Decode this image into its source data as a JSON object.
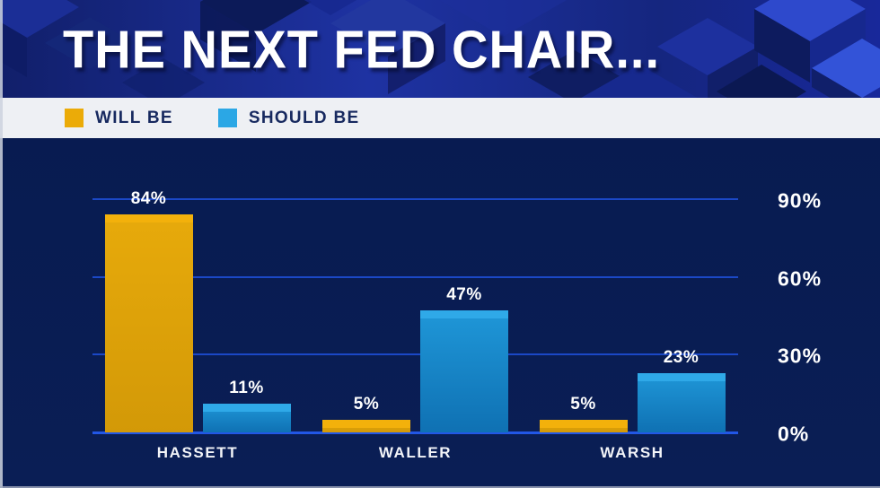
{
  "header": {
    "title": "THE NEXT FED CHAIR..."
  },
  "legend": {
    "items": [
      {
        "label": "WILL BE",
        "color": "#EBAB08"
      },
      {
        "label": "SHOULD BE",
        "color": "#2BA7E5"
      }
    ]
  },
  "chart_data": {
    "type": "bar",
    "title": "THE NEXT FED CHAIR...",
    "categories": [
      "HASSETT",
      "WALLER",
      "WARSH"
    ],
    "series": [
      {
        "name": "WILL BE",
        "values": [
          84,
          5,
          5
        ],
        "color_top": "#E7AA0B",
        "color_bottom": "#D39907",
        "cap_color": "#F3B10B"
      },
      {
        "name": "SHOULD BE",
        "values": [
          11,
          47,
          23
        ],
        "color_top": "#1F97D8",
        "color_bottom": "#0F71B3",
        "cap_color": "#2FA9E8"
      }
    ],
    "value_suffix": "%",
    "y_ticks": [
      0,
      30,
      60,
      90
    ],
    "y_tick_suffix": "%",
    "ylim": [
      0,
      90
    ],
    "grid": true,
    "legend_position": "top",
    "colors": {
      "plot_bg": "#081B50",
      "gridline": "#1B48C6",
      "baseline": "#2257E6",
      "label_text": "#FFFFFF"
    }
  }
}
